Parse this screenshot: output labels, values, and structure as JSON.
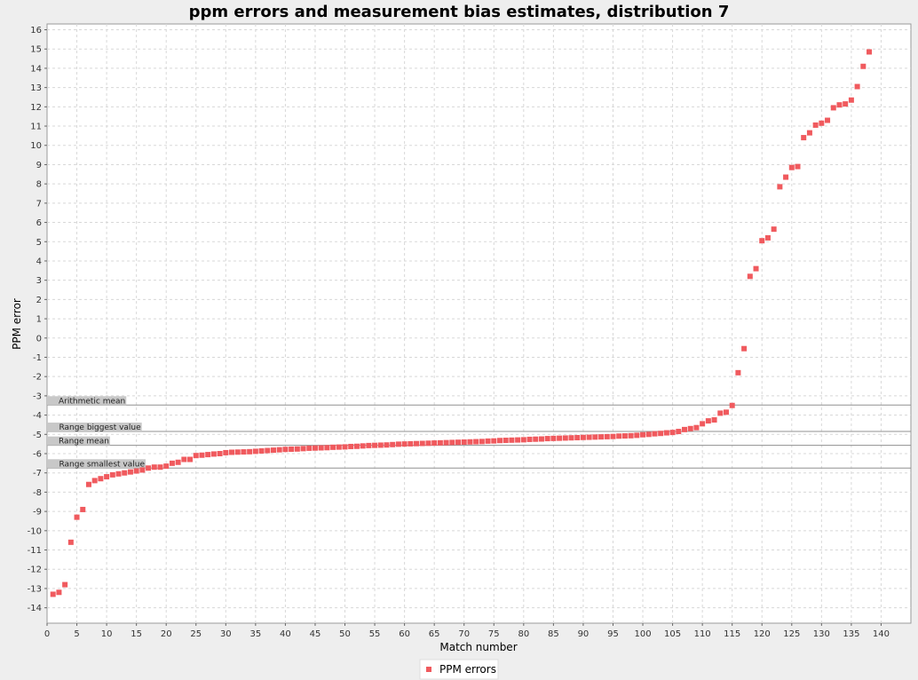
{
  "chart_data": {
    "type": "scatter",
    "title": "ppm errors and measurement bias estimates, distribution 7",
    "xlabel": "Match number",
    "ylabel": "PPM error",
    "xlim": [
      0,
      145
    ],
    "ylim": [
      -14.8,
      16.3
    ],
    "x_ticks": [
      0,
      5,
      10,
      15,
      20,
      25,
      30,
      35,
      40,
      45,
      50,
      55,
      60,
      65,
      70,
      75,
      80,
      85,
      90,
      95,
      100,
      105,
      110,
      115,
      120,
      125,
      130,
      135,
      140
    ],
    "y_ticks": [
      -14,
      -13,
      -12,
      -11,
      -10,
      -9,
      -8,
      -7,
      -6,
      -5,
      -4,
      -3,
      -2,
      -1,
      0,
      1,
      2,
      3,
      4,
      5,
      6,
      7,
      8,
      9,
      10,
      11,
      12,
      13,
      14,
      15,
      16
    ],
    "grid": true,
    "legend_position": "bottom",
    "series": [
      {
        "name": "PPM errors",
        "color": "#f05a5e",
        "marker": "square",
        "x": [
          1,
          2,
          3,
          4,
          5,
          6,
          7,
          8,
          9,
          10,
          11,
          12,
          13,
          14,
          15,
          16,
          17,
          18,
          19,
          20,
          21,
          22,
          23,
          24,
          25,
          26,
          27,
          28,
          29,
          30,
          31,
          32,
          33,
          34,
          35,
          36,
          37,
          38,
          39,
          40,
          41,
          42,
          43,
          44,
          45,
          46,
          47,
          48,
          49,
          50,
          51,
          52,
          53,
          54,
          55,
          56,
          57,
          58,
          59,
          60,
          61,
          62,
          63,
          64,
          65,
          66,
          67,
          68,
          69,
          70,
          71,
          72,
          73,
          74,
          75,
          76,
          77,
          78,
          79,
          80,
          81,
          82,
          83,
          84,
          85,
          86,
          87,
          88,
          89,
          90,
          91,
          92,
          93,
          94,
          95,
          96,
          97,
          98,
          99,
          100,
          101,
          102,
          103,
          104,
          105,
          106,
          107,
          108,
          109,
          110,
          111,
          112,
          113,
          114,
          115,
          116,
          117,
          118,
          119,
          120,
          121,
          122,
          123,
          124,
          125,
          126,
          127,
          128,
          129,
          130,
          131,
          132,
          133,
          134,
          135,
          136,
          137,
          138
        ],
        "y": [
          -13.3,
          -13.2,
          -12.8,
          -10.6,
          -9.3,
          -8.9,
          -7.6,
          -7.4,
          -7.3,
          -7.2,
          -7.1,
          -7.05,
          -7.0,
          -6.95,
          -6.9,
          -6.85,
          -6.75,
          -6.7,
          -6.7,
          -6.65,
          -6.5,
          -6.45,
          -6.3,
          -6.3,
          -6.1,
          -6.08,
          -6.05,
          -6.02,
          -6.0,
          -5.95,
          -5.93,
          -5.92,
          -5.91,
          -5.9,
          -5.88,
          -5.86,
          -5.84,
          -5.82,
          -5.8,
          -5.78,
          -5.77,
          -5.76,
          -5.74,
          -5.72,
          -5.71,
          -5.7,
          -5.69,
          -5.67,
          -5.66,
          -5.65,
          -5.63,
          -5.62,
          -5.6,
          -5.58,
          -5.57,
          -5.56,
          -5.55,
          -5.53,
          -5.51,
          -5.5,
          -5.49,
          -5.48,
          -5.47,
          -5.46,
          -5.45,
          -5.44,
          -5.43,
          -5.42,
          -5.41,
          -5.4,
          -5.39,
          -5.38,
          -5.37,
          -5.35,
          -5.34,
          -5.32,
          -5.31,
          -5.3,
          -5.29,
          -5.28,
          -5.26,
          -5.25,
          -5.24,
          -5.22,
          -5.21,
          -5.2,
          -5.19,
          -5.18,
          -5.17,
          -5.16,
          -5.15,
          -5.14,
          -5.13,
          -5.12,
          -5.11,
          -5.09,
          -5.08,
          -5.07,
          -5.05,
          -5.02,
          -5.0,
          -4.97,
          -4.95,
          -4.92,
          -4.9,
          -4.85,
          -4.75,
          -4.7,
          -4.65,
          -4.45,
          -4.3,
          -4.25,
          -3.9,
          -3.85,
          -3.5,
          -1.8,
          -0.55,
          3.2,
          3.6,
          5.05,
          5.2,
          5.65,
          7.85,
          8.35,
          8.85,
          8.9,
          10.4,
          10.65,
          11.05,
          11.15,
          11.3,
          11.95,
          12.1,
          12.15,
          12.35,
          13.05,
          14.1,
          14.85
        ]
      }
    ],
    "reference_lines": [
      {
        "label": "Arithmetic mean",
        "value": -3.48
      },
      {
        "label": "Range biggest value",
        "value": -4.85
      },
      {
        "label": "Range mean",
        "value": -5.57
      },
      {
        "label": "Range smallest value",
        "value": -6.75
      }
    ],
    "legend": [
      {
        "label": "PPM errors",
        "color": "#f05a5e"
      }
    ]
  }
}
